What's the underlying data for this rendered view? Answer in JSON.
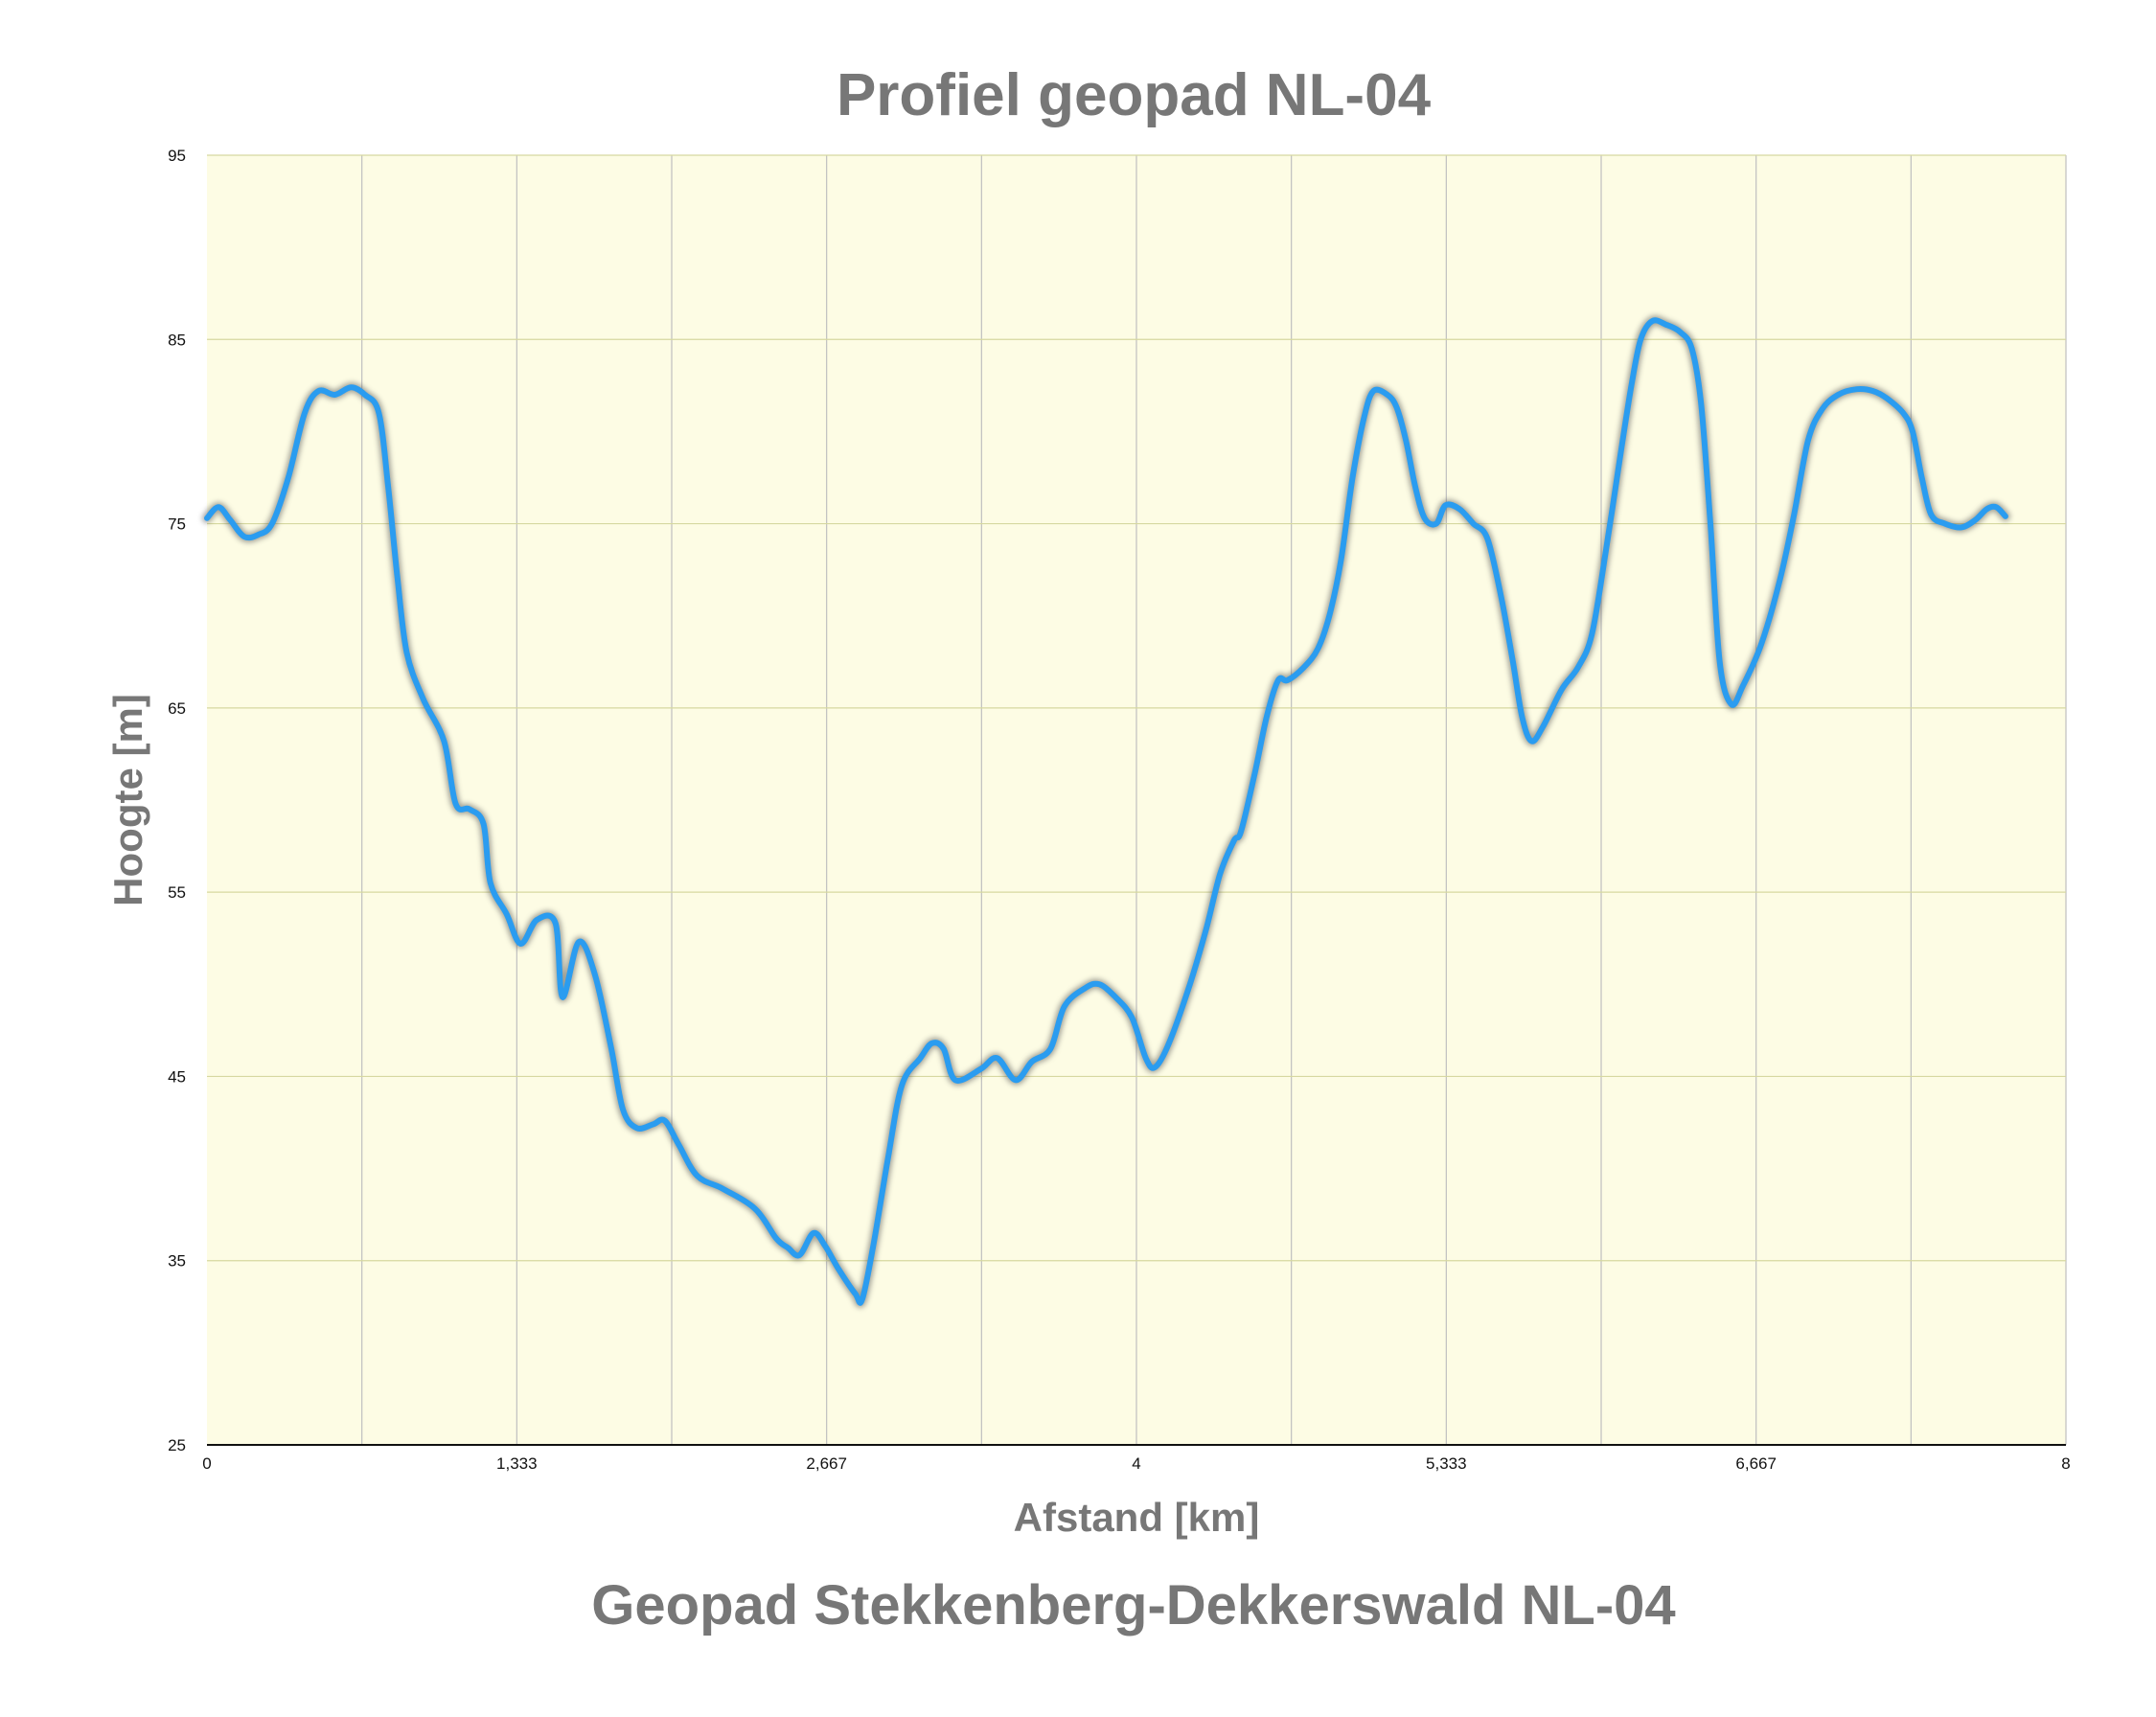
{
  "chart_data": {
    "type": "area",
    "title": "Profiel geopad NL-04",
    "subtitle": "Geopad Stekkenberg-Dekkerswald NL-04",
    "xlabel": "Afstand [km]",
    "ylabel": "Hoogte [m]",
    "xlim": [
      0,
      8
    ],
    "ylim": [
      25,
      95
    ],
    "x_ticks": [
      "0",
      "1,333",
      "2,667",
      "4",
      "5,333",
      "6,667",
      "8"
    ],
    "y_ticks": [
      "95",
      "85",
      "75",
      "65",
      "55",
      "45",
      "35",
      "25"
    ],
    "grid": true,
    "colors": {
      "line": "#2a9cf0",
      "line_shadow": "#555555",
      "plot_background": "#fdfce4",
      "grid_vertical": "#bfbfbf",
      "grid_horizontal": "#d6d8a0",
      "text": "#777777"
    },
    "series": [
      {
        "points": [
          [
            0.0,
            75.3
          ],
          [
            0.05,
            75.9
          ],
          [
            0.1,
            75.2
          ],
          [
            0.16,
            74.3
          ],
          [
            0.22,
            74.4
          ],
          [
            0.28,
            75.0
          ],
          [
            0.35,
            77.5
          ],
          [
            0.42,
            81.0
          ],
          [
            0.48,
            82.2
          ],
          [
            0.55,
            82.0
          ],
          [
            0.62,
            82.4
          ],
          [
            0.68,
            82.0
          ],
          [
            0.74,
            81.0
          ],
          [
            0.78,
            77.0
          ],
          [
            0.82,
            72.0
          ],
          [
            0.86,
            68.0
          ],
          [
            0.93,
            65.5
          ],
          [
            1.02,
            63.2
          ],
          [
            1.07,
            59.8
          ],
          [
            1.13,
            59.5
          ],
          [
            1.19,
            58.7
          ],
          [
            1.22,
            55.5
          ],
          [
            1.29,
            53.8
          ],
          [
            1.35,
            52.2
          ],
          [
            1.42,
            53.5
          ],
          [
            1.5,
            53.3
          ],
          [
            1.53,
            49.3
          ],
          [
            1.6,
            52.3
          ],
          [
            1.67,
            50.5
          ],
          [
            1.74,
            46.5
          ],
          [
            1.79,
            43.2
          ],
          [
            1.85,
            42.2
          ],
          [
            1.92,
            42.4
          ],
          [
            1.97,
            42.6
          ],
          [
            2.03,
            41.3
          ],
          [
            2.11,
            39.6
          ],
          [
            2.22,
            38.9
          ],
          [
            2.36,
            37.8
          ],
          [
            2.45,
            36.2
          ],
          [
            2.5,
            35.7
          ],
          [
            2.55,
            35.3
          ],
          [
            2.61,
            36.5
          ],
          [
            2.66,
            35.8
          ],
          [
            2.72,
            34.5
          ],
          [
            2.79,
            33.2
          ],
          [
            2.82,
            32.9
          ],
          [
            2.87,
            36.0
          ],
          [
            2.93,
            40.5
          ],
          [
            2.99,
            44.5
          ],
          [
            3.07,
            46.0
          ],
          [
            3.12,
            46.8
          ],
          [
            3.17,
            46.5
          ],
          [
            3.22,
            44.8
          ],
          [
            3.33,
            45.4
          ],
          [
            3.4,
            46.0
          ],
          [
            3.48,
            44.8
          ],
          [
            3.55,
            45.8
          ],
          [
            3.63,
            46.5
          ],
          [
            3.69,
            48.8
          ],
          [
            3.78,
            49.8
          ],
          [
            3.84,
            50.0
          ],
          [
            3.91,
            49.3
          ],
          [
            3.98,
            48.2
          ],
          [
            4.04,
            46.0
          ],
          [
            4.08,
            45.5
          ],
          [
            4.14,
            46.8
          ],
          [
            4.23,
            50.0
          ],
          [
            4.3,
            53.0
          ],
          [
            4.36,
            56.0
          ],
          [
            4.42,
            57.8
          ],
          [
            4.45,
            58.3
          ],
          [
            4.51,
            61.5
          ],
          [
            4.56,
            64.5
          ],
          [
            4.61,
            66.5
          ],
          [
            4.65,
            66.5
          ],
          [
            4.72,
            67.2
          ],
          [
            4.78,
            68.2
          ],
          [
            4.83,
            70.0
          ],
          [
            4.88,
            73.0
          ],
          [
            4.93,
            77.5
          ],
          [
            4.98,
            80.8
          ],
          [
            5.02,
            82.2
          ],
          [
            5.08,
            82.0
          ],
          [
            5.12,
            81.3
          ],
          [
            5.16,
            79.5
          ],
          [
            5.2,
            77.0
          ],
          [
            5.24,
            75.3
          ],
          [
            5.29,
            75.0
          ],
          [
            5.33,
            76.0
          ],
          [
            5.39,
            75.8
          ],
          [
            5.45,
            75.0
          ],
          [
            5.51,
            74.2
          ],
          [
            5.57,
            71.0
          ],
          [
            5.62,
            67.5
          ],
          [
            5.66,
            64.5
          ],
          [
            5.7,
            63.2
          ],
          [
            5.75,
            64.0
          ],
          [
            5.83,
            66.0
          ],
          [
            5.9,
            67.2
          ],
          [
            5.96,
            69.0
          ],
          [
            6.02,
            73.5
          ],
          [
            6.08,
            78.5
          ],
          [
            6.13,
            82.5
          ],
          [
            6.17,
            85.0
          ],
          [
            6.22,
            86.0
          ],
          [
            6.28,
            85.8
          ],
          [
            6.34,
            85.4
          ],
          [
            6.39,
            84.5
          ],
          [
            6.43,
            81.5
          ],
          [
            6.47,
            75.0
          ],
          [
            6.51,
            67.5
          ],
          [
            6.56,
            65.2
          ],
          [
            6.61,
            66.2
          ],
          [
            6.69,
            68.5
          ],
          [
            6.77,
            72.0
          ],
          [
            6.83,
            75.5
          ],
          [
            6.89,
            79.5
          ],
          [
            6.95,
            81.2
          ],
          [
            7.02,
            82.0
          ],
          [
            7.1,
            82.3
          ],
          [
            7.17,
            82.2
          ],
          [
            7.23,
            81.8
          ],
          [
            7.3,
            81.0
          ],
          [
            7.34,
            80.0
          ],
          [
            7.38,
            77.5
          ],
          [
            7.42,
            75.5
          ],
          [
            7.48,
            75.0
          ],
          [
            7.55,
            74.8
          ],
          [
            7.61,
            75.2
          ],
          [
            7.66,
            75.8
          ],
          [
            7.7,
            75.9
          ],
          [
            7.74,
            75.4
          ]
        ]
      }
    ]
  }
}
